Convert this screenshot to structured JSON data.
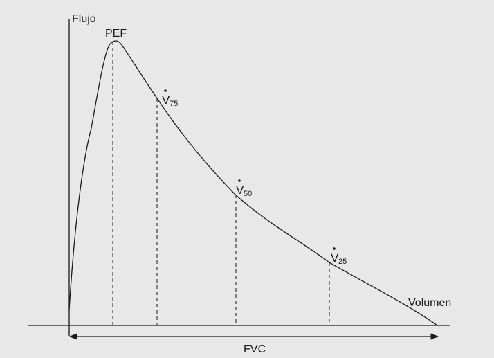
{
  "diagram": {
    "y_axis_label": "Flujo",
    "x_axis_label": "Volumen",
    "peak_label": "PEF",
    "fvc_label": "FVC",
    "markers": [
      {
        "symbol": "V",
        "subscript": "75"
      },
      {
        "symbol": "V",
        "subscript": "50"
      },
      {
        "symbol": "V",
        "subscript": "25"
      }
    ]
  },
  "colors": {
    "background": "#e8e8e8",
    "line": "#1a1a1a"
  }
}
